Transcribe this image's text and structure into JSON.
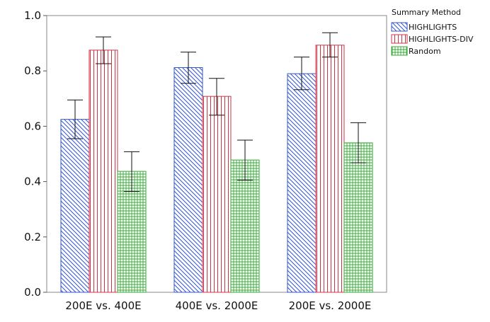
{
  "chart_data": {
    "type": "bar",
    "categories": [
      "200E vs. 400E",
      "400E vs. 2000E",
      "200E vs. 2000E"
    ],
    "series": [
      {
        "name": "HIGHLIGHTS",
        "values": [
          0.625,
          0.812,
          0.79
        ],
        "err_low": [
          0.555,
          0.755,
          0.732
        ],
        "err_high": [
          0.695,
          0.868,
          0.85
        ],
        "color": "#3355cc",
        "pattern": "diagonal"
      },
      {
        "name": "HIGHLIGHTS-DIV",
        "values": [
          0.875,
          0.708,
          0.893
        ],
        "err_low": [
          0.826,
          0.64,
          0.85
        ],
        "err_high": [
          0.923,
          0.773,
          0.938
        ],
        "color": "#cc3344",
        "pattern": "vertical"
      },
      {
        "name": "Random",
        "values": [
          0.437,
          0.478,
          0.54
        ],
        "err_low": [
          0.364,
          0.405,
          0.468
        ],
        "err_high": [
          0.508,
          0.55,
          0.613
        ],
        "color": "#33aa33",
        "pattern": "grid"
      }
    ],
    "ylim": [
      0,
      1.0
    ],
    "yticks": [
      "0.0",
      "0.2",
      "0.4",
      "0.6",
      "0.8",
      "1.0"
    ],
    "legend": {
      "title": "Summary Method",
      "placement": "top-right-outside"
    },
    "grid": false
  }
}
